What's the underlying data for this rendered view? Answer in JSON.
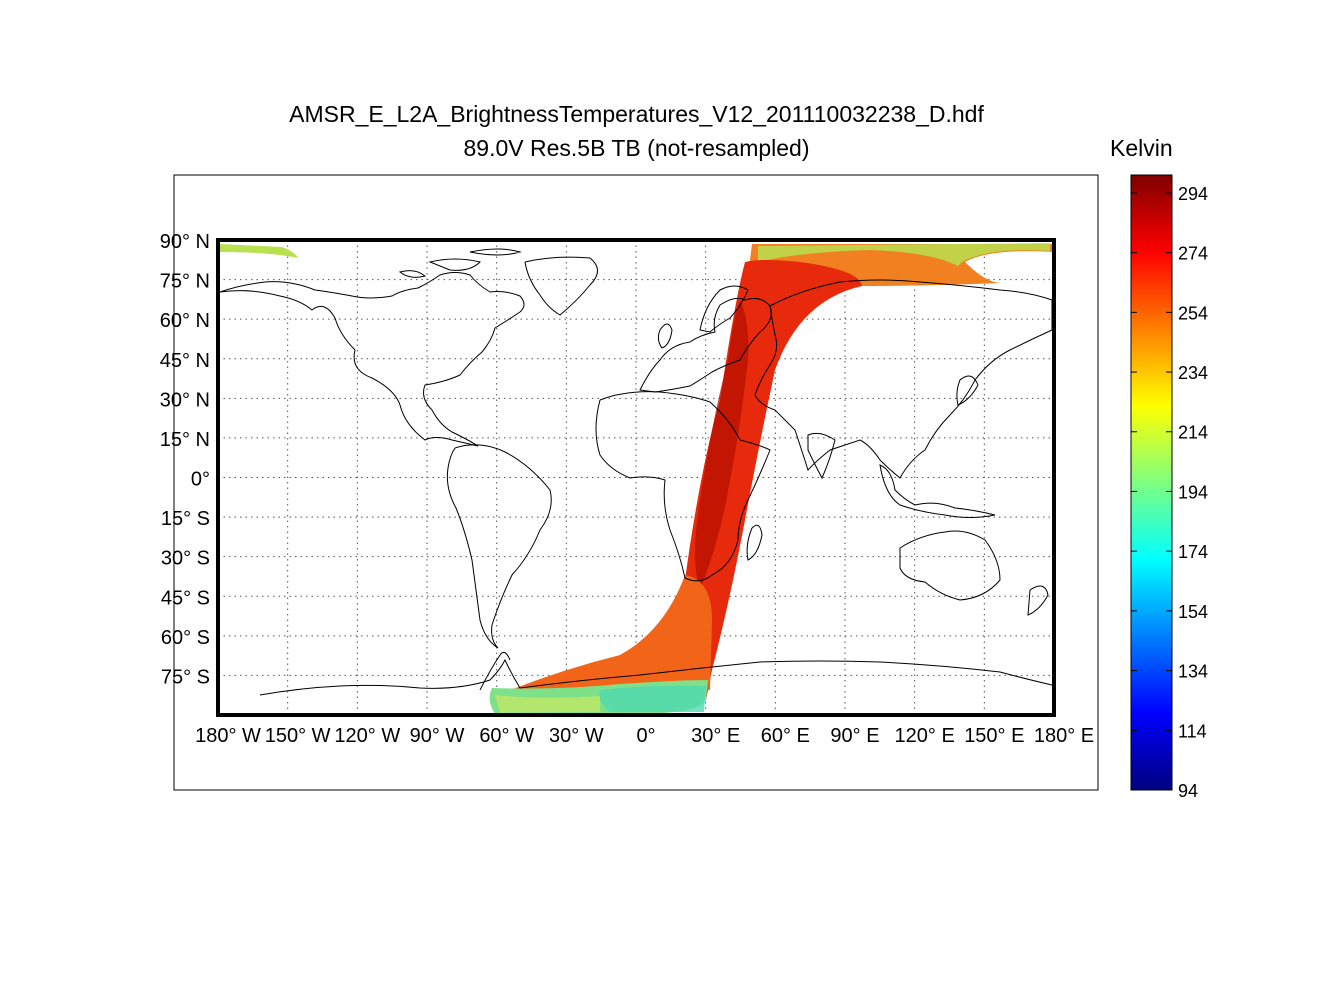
{
  "title": {
    "line1": "AMSR_E_L2A_BrightnessTemperatures_V12_201110032238_D.hdf",
    "line2": "89.0V Res.5B TB (not-resampled)"
  },
  "colorbar": {
    "unit": "Kelvin",
    "min": 94,
    "max": 300,
    "ticks": [
      294,
      274,
      254,
      234,
      214,
      194,
      174,
      154,
      134,
      114,
      94
    ],
    "colormap": [
      "#00007f",
      "#0000ff",
      "#007fff",
      "#00ffff",
      "#7fff7f",
      "#ffff00",
      "#ff7f00",
      "#ff0000",
      "#7f0000"
    ]
  },
  "map": {
    "projection": "equirectangular",
    "lon_range": [
      -180,
      180
    ],
    "lat_range": [
      -90,
      90
    ],
    "grid": true,
    "lat_ticks": [
      "90° N",
      "75° N",
      "60° N",
      "45° N",
      "30° N",
      "15° N",
      "0°",
      "15° S",
      "30° S",
      "45° S",
      "60° S",
      "75° S"
    ],
    "lat_values": [
      90,
      75,
      60,
      45,
      30,
      15,
      0,
      -15,
      -30,
      -45,
      -60,
      -75
    ],
    "lon_ticks": [
      "180° W",
      "150° W",
      "120° W",
      "90° W",
      "60° W",
      "30° W",
      "0°",
      "30° E",
      "60° E",
      "90° E",
      "120° E",
      "150° E",
      "180° E"
    ],
    "lon_values": [
      -180,
      -150,
      -120,
      -90,
      -60,
      -30,
      0,
      30,
      60,
      90,
      120,
      150,
      180
    ],
    "coastline_color": "#000000"
  },
  "swath": {
    "description_colors": {
      "core": "#e8200a",
      "dark": "#b00e00",
      "warm": "#f06a10",
      "cold_edge": "#7fe08a",
      "polar_green": "#c0e040"
    }
  }
}
